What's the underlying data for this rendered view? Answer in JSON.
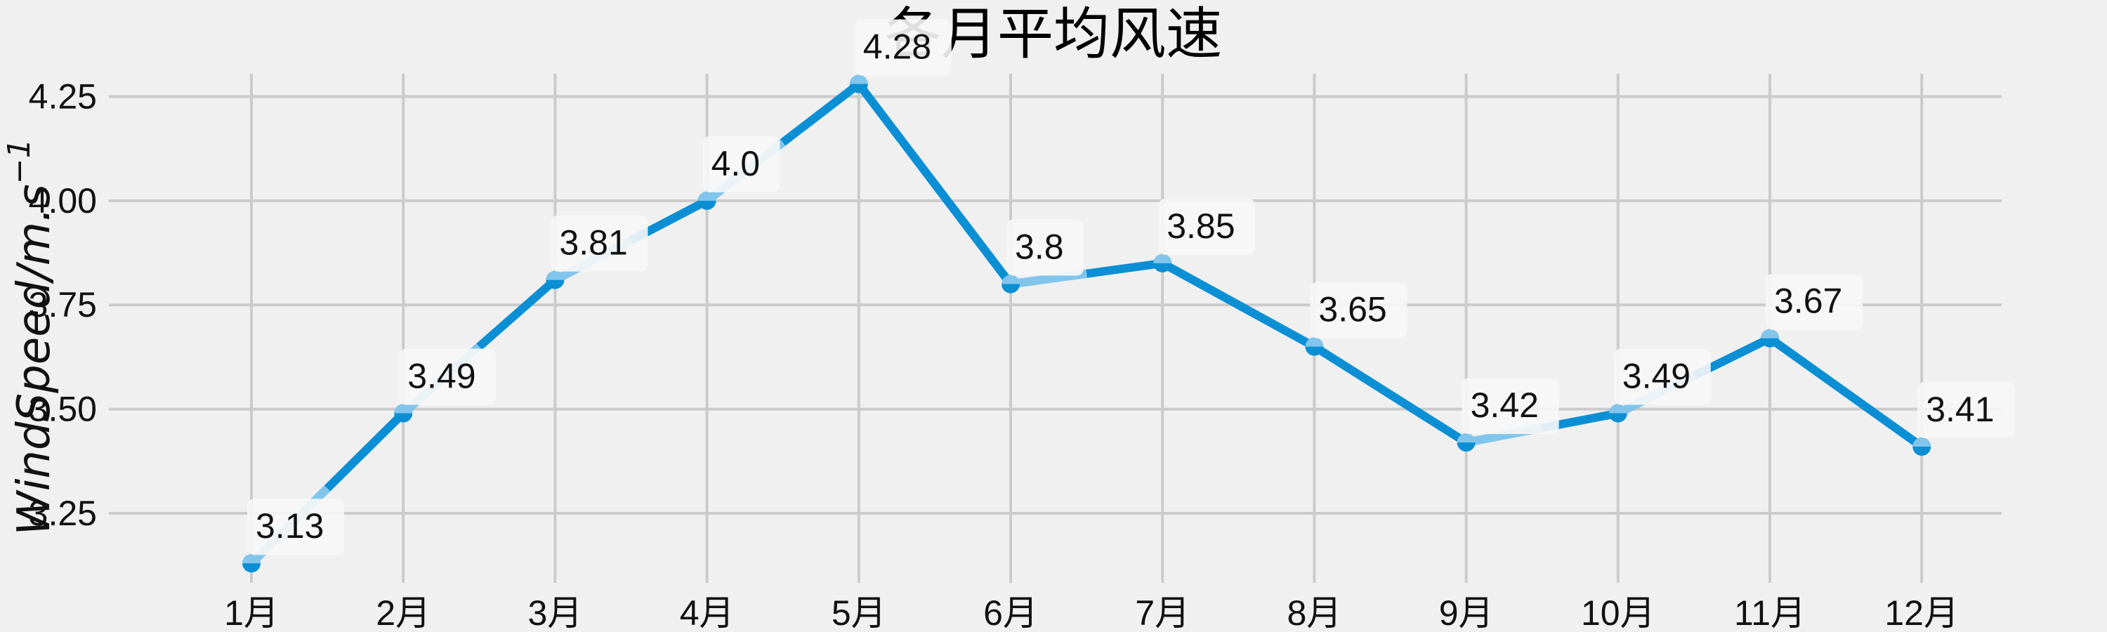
{
  "chart_data": {
    "type": "line",
    "title": "各月平均风速",
    "ylabel_main": "WindSpeed/m.s",
    "ylabel_sup": "−1",
    "xlabel": "",
    "categories": [
      "1月",
      "2月",
      "3月",
      "4月",
      "5月",
      "6月",
      "7月",
      "8月",
      "9月",
      "10月",
      "11月",
      "12月"
    ],
    "values": [
      3.13,
      3.49,
      3.81,
      4.0,
      4.28,
      3.8,
      3.85,
      3.65,
      3.42,
      3.49,
      3.67,
      3.41
    ],
    "data_labels": [
      "3.13",
      "3.49",
      "3.81",
      "4.0",
      "4.28",
      "3.8",
      "3.85",
      "3.65",
      "3.42",
      "3.49",
      "3.67",
      "3.41"
    ],
    "yticks": [
      3.25,
      3.5,
      3.75,
      4.0,
      4.25
    ],
    "ytick_labels": [
      "3.25",
      "3.50",
      "3.75",
      "4.00",
      "4.25"
    ],
    "ylim": [
      3.1,
      4.33
    ],
    "grid": true,
    "colors": {
      "line": "#0a8fd4",
      "marker": "#0a8fd4",
      "highlight": "#82c5ec",
      "background": "#f0f0f0",
      "grid": "#cbcbcb"
    }
  }
}
